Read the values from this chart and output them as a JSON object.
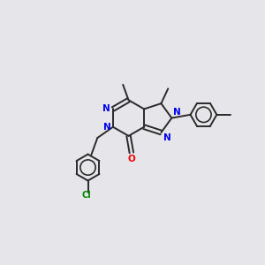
{
  "bg_color": "#e6e6ea",
  "bond_color": "#2a2a2a",
  "n_color": "#0000ee",
  "o_color": "#ee0000",
  "cl_color": "#008800",
  "bond_width": 1.4,
  "figsize": [
    3.0,
    3.0
  ],
  "dpi": 100,
  "xlim": [
    0,
    10
  ],
  "ylim": [
    0,
    10
  ]
}
